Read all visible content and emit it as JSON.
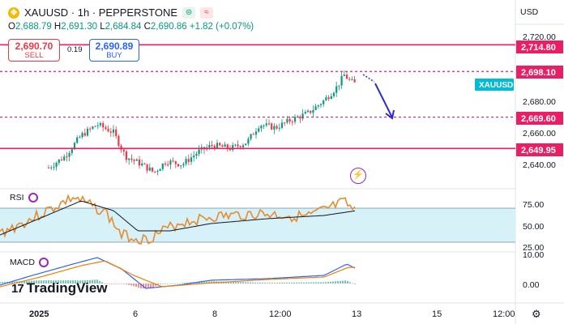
{
  "header": {
    "title": "XAUUSD · 1h · PEPPERSTONE",
    "btn1": "⊜",
    "btn2": "≈",
    "ohlc": {
      "o_label": "O",
      "o": "2,688.79",
      "h_label": "H",
      "h": "2,691.30",
      "l_label": "L",
      "l": "2,684.84",
      "c_label": "C",
      "c": "2,690.86",
      "chg": "+1.82 (+0.07%)"
    }
  },
  "trade": {
    "sell_price": "2,690.70",
    "sell_label": "SELL",
    "spread": "0.19",
    "buy_price": "2,690.89",
    "buy_label": "BUY"
  },
  "price_axis": {
    "currency": "USD",
    "ticks": [
      "2,720.00",
      "2,680.00",
      "2,660.00",
      "2,640.00"
    ],
    "levels": [
      {
        "label": "2,714.80",
        "value": 2714.8
      },
      {
        "label": "2,698.10",
        "value": 2698.1
      },
      {
        "label": "2,669.60",
        "value": 2669.6
      },
      {
        "label": "2,649.95",
        "value": 2649.95
      }
    ],
    "symbol_badge": "XAUUSD"
  },
  "indicators": {
    "rsi_label": "RSI",
    "rsi_ticks": [
      "75.00",
      "50.00",
      "25.00"
    ],
    "macd_label": "MACD",
    "macd_ticks": [
      "10.00",
      "0.00"
    ]
  },
  "time_axis": {
    "labels": [
      "2025",
      "6",
      "8",
      "12:00",
      "13",
      "15",
      "12:00"
    ]
  },
  "branding": {
    "logo_mark": "17",
    "logo_text": "TradingView"
  },
  "colors": {
    "up": "#089981",
    "down": "#f23645",
    "level": "#e91e63",
    "zone": "#d6f1f7",
    "rsi": "#e88a2e",
    "rsi_ma": "#131722",
    "macd": "#2962ff",
    "signal": "#f57c00",
    "badge": "#00bcd4",
    "arrow": "#2b2bd6"
  }
}
